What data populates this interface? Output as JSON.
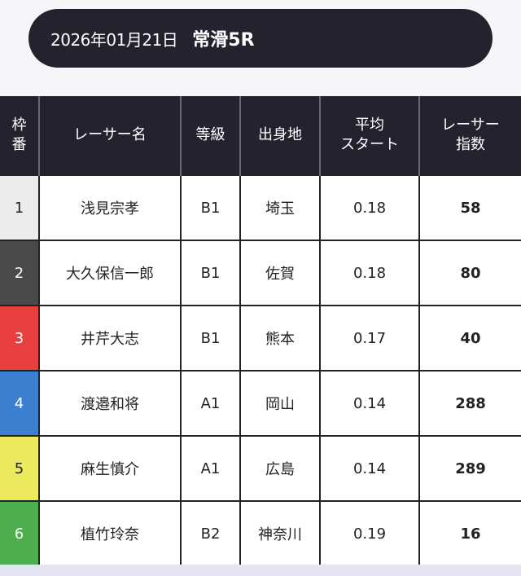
{
  "header": {
    "date": "2026年01月21日",
    "race": "常滑5R"
  },
  "table": {
    "columns": [
      "枠\n番",
      "レーサー名",
      "等級",
      "出身地",
      "平均\nスタート",
      "レーサー\n指数"
    ],
    "rows": [
      {
        "waku": "1",
        "name": "浅見宗孝",
        "grade": "B1",
        "origin": "埼玉",
        "avg_start": "0.18",
        "index": "58",
        "color": "#ececec",
        "text_color": "#222222"
      },
      {
        "waku": "2",
        "name": "大久保信一郎",
        "grade": "B1",
        "origin": "佐賀",
        "avg_start": "0.18",
        "index": "80",
        "color": "#4a4a4a",
        "text_color": "#ffffff"
      },
      {
        "waku": "3",
        "name": "井芹大志",
        "grade": "B1",
        "origin": "熊本",
        "avg_start": "0.17",
        "index": "40",
        "color": "#e84040",
        "text_color": "#ffffff"
      },
      {
        "waku": "4",
        "name": "渡邉和将",
        "grade": "A1",
        "origin": "岡山",
        "avg_start": "0.14",
        "index": "288",
        "color": "#3a7fd0",
        "text_color": "#ffffff"
      },
      {
        "waku": "5",
        "name": "麻生慎介",
        "grade": "A1",
        "origin": "広島",
        "avg_start": "0.14",
        "index": "289",
        "color": "#eaea5c",
        "text_color": "#222222"
      },
      {
        "waku": "6",
        "name": "植竹玲奈",
        "grade": "B2",
        "origin": "神奈川",
        "avg_start": "0.19",
        "index": "16",
        "color": "#4cae4c",
        "text_color": "#ffffff"
      }
    ]
  }
}
